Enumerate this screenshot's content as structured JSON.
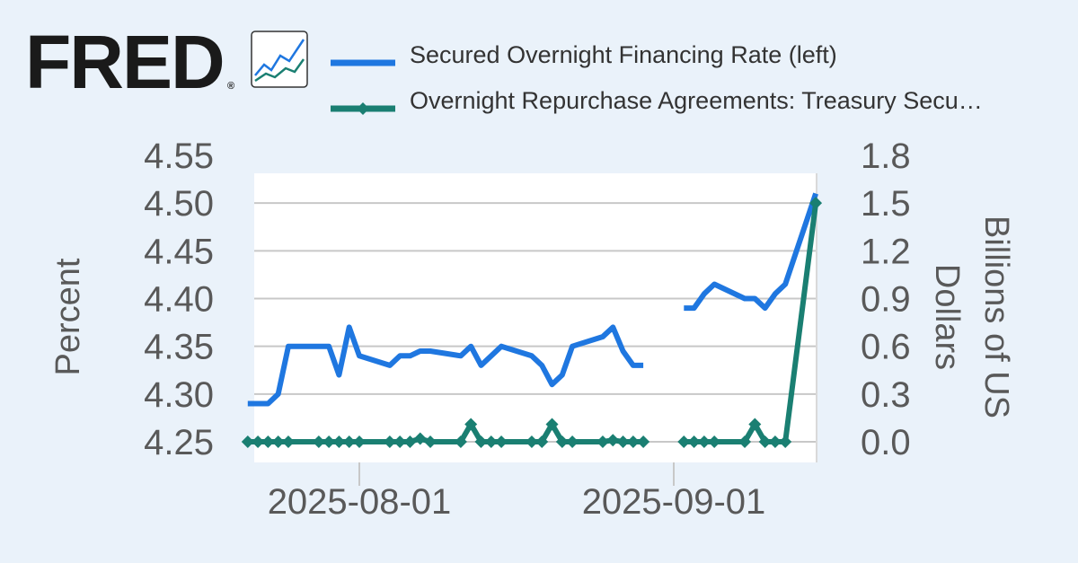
{
  "brand": {
    "name": "FRED",
    "registered_mark": "®",
    "icon": "line-graph-icon"
  },
  "colors": {
    "background": "#eaf2fa",
    "plot_background": "#ffffff",
    "grid": "#c8c8c8",
    "series_1": "#1f77e0",
    "series_2": "#1a7f72",
    "text": "#333333",
    "axis_text": "#595959"
  },
  "chart_data": {
    "type": "line",
    "dual_axis": true,
    "grid": true,
    "legend_placement": "top",
    "x_ticks": [
      "2025-08-01",
      "2025-09-01"
    ],
    "y_left": {
      "label": "Percent",
      "ticks": [
        "4.25",
        "4.30",
        "4.35",
        "4.40",
        "4.45",
        "4.50",
        "4.55"
      ],
      "range": [
        4.25,
        4.55
      ]
    },
    "y_right": {
      "label_lines": [
        "Billions of US",
        "Dollars"
      ],
      "ticks": [
        "0.0",
        "0.3",
        "0.6",
        "0.9",
        "1.2",
        "1.5",
        "1.8"
      ],
      "range": [
        0.0,
        1.8
      ]
    },
    "series": [
      {
        "name": "Secured Overnight Financing Rate (left)",
        "axis": "left",
        "segments": [
          [
            [
              "2025-07-21",
              4.29
            ],
            [
              "2025-07-22",
              4.29
            ],
            [
              "2025-07-23",
              4.29
            ],
            [
              "2025-07-24",
              4.3
            ],
            [
              "2025-07-25",
              4.35
            ],
            [
              "2025-07-28",
              4.35
            ],
            [
              "2025-07-29",
              4.35
            ],
            [
              "2025-07-30",
              4.32
            ],
            [
              "2025-07-31",
              4.37
            ],
            [
              "2025-08-01",
              4.34
            ],
            [
              "2025-08-04",
              4.33
            ],
            [
              "2025-08-05",
              4.34
            ],
            [
              "2025-08-06",
              4.34
            ],
            [
              "2025-08-07",
              4.345
            ],
            [
              "2025-08-08",
              4.345
            ],
            [
              "2025-08-11",
              4.34
            ],
            [
              "2025-08-12",
              4.35
            ],
            [
              "2025-08-13",
              4.33
            ],
            [
              "2025-08-14",
              4.34
            ],
            [
              "2025-08-15",
              4.35
            ],
            [
              "2025-08-18",
              4.34
            ],
            [
              "2025-08-19",
              4.33
            ],
            [
              "2025-08-20",
              4.31
            ],
            [
              "2025-08-21",
              4.32
            ],
            [
              "2025-08-22",
              4.35
            ],
            [
              "2025-08-25",
              4.36
            ],
            [
              "2025-08-26",
              4.37
            ],
            [
              "2025-08-27",
              4.345
            ],
            [
              "2025-08-28",
              4.33
            ],
            [
              "2025-08-29",
              4.33
            ]
          ],
          [
            [
              "2025-09-02",
              4.39
            ],
            [
              "2025-09-03",
              4.39
            ],
            [
              "2025-09-04",
              4.405
            ],
            [
              "2025-09-05",
              4.415
            ],
            [
              "2025-09-08",
              4.4
            ],
            [
              "2025-09-09",
              4.4
            ],
            [
              "2025-09-10",
              4.39
            ],
            [
              "2025-09-11",
              4.405
            ],
            [
              "2025-09-12",
              4.415
            ],
            [
              "2025-09-15",
              4.51
            ]
          ]
        ]
      },
      {
        "name": "Overnight Repurchase Agreements: Treasury Secu…",
        "axis": "right",
        "segments": [
          [
            [
              "2025-07-21",
              0.0
            ],
            [
              "2025-07-22",
              0.0
            ],
            [
              "2025-07-23",
              0.0
            ],
            [
              "2025-07-24",
              0.0
            ],
            [
              "2025-07-25",
              0.0
            ],
            [
              "2025-07-28",
              0.0
            ],
            [
              "2025-07-29",
              0.0
            ],
            [
              "2025-07-30",
              0.0
            ],
            [
              "2025-07-31",
              0.0
            ],
            [
              "2025-08-01",
              0.0
            ],
            [
              "2025-08-04",
              0.0
            ],
            [
              "2025-08-05",
              0.0
            ],
            [
              "2025-08-06",
              0.0
            ],
            [
              "2025-08-07",
              0.02
            ],
            [
              "2025-08-08",
              0.0
            ],
            [
              "2025-08-11",
              0.0
            ],
            [
              "2025-08-12",
              0.11
            ],
            [
              "2025-08-13",
              0.0
            ],
            [
              "2025-08-14",
              0.0
            ],
            [
              "2025-08-15",
              0.0
            ],
            [
              "2025-08-18",
              0.0
            ],
            [
              "2025-08-19",
              0.0
            ],
            [
              "2025-08-20",
              0.11
            ],
            [
              "2025-08-21",
              0.0
            ],
            [
              "2025-08-22",
              0.0
            ],
            [
              "2025-08-25",
              0.0
            ],
            [
              "2025-08-26",
              0.01
            ],
            [
              "2025-08-27",
              0.0
            ],
            [
              "2025-08-28",
              0.0
            ],
            [
              "2025-08-29",
              0.0
            ]
          ],
          [
            [
              "2025-09-02",
              0.0
            ],
            [
              "2025-09-03",
              0.0
            ],
            [
              "2025-09-04",
              0.0
            ],
            [
              "2025-09-05",
              0.0
            ],
            [
              "2025-09-08",
              0.0
            ],
            [
              "2025-09-09",
              0.11
            ],
            [
              "2025-09-10",
              0.0
            ],
            [
              "2025-09-11",
              0.0
            ],
            [
              "2025-09-12",
              0.0
            ],
            [
              "2025-09-15",
              1.5
            ]
          ]
        ]
      }
    ]
  }
}
